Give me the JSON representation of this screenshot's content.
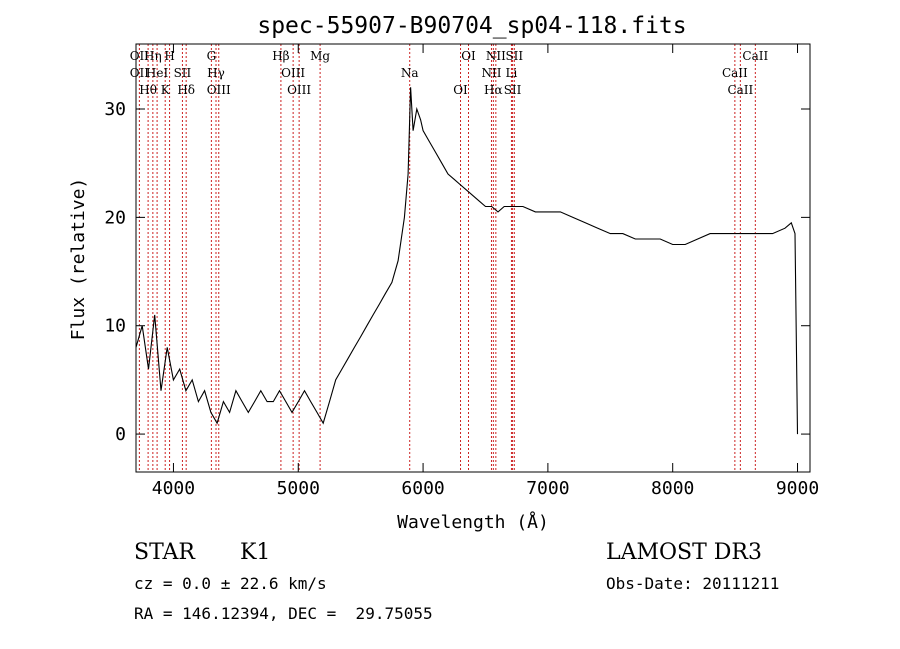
{
  "chart_data": {
    "type": "line",
    "title": "spec-55907-B90704_sp04-118.fits",
    "xlabel": "Wavelength (Å)",
    "ylabel": "Flux (relative)",
    "xlim": [
      3700,
      9100
    ],
    "ylim": [
      -3.5,
      36
    ],
    "xticks": [
      4000,
      5000,
      6000,
      7000,
      8000,
      9000
    ],
    "yticks": [
      0,
      10,
      20,
      30
    ],
    "grid": false,
    "legend": "none",
    "series": [
      {
        "color": "#000000",
        "x": [
          3700,
          3750,
          3800,
          3850,
          3900,
          3950,
          4000,
          4050,
          4100,
          4150,
          4200,
          4250,
          4300,
          4350,
          4400,
          4450,
          4500,
          4550,
          4600,
          4650,
          4700,
          4750,
          4800,
          4850,
          4900,
          4950,
          5000,
          5050,
          5100,
          5150,
          5200,
          5250,
          5300,
          5350,
          5400,
          5450,
          5500,
          5550,
          5600,
          5650,
          5700,
          5750,
          5800,
          5850,
          5880,
          5900,
          5920,
          5950,
          5980,
          6000,
          6050,
          6100,
          6150,
          6200,
          6250,
          6300,
          6350,
          6400,
          6450,
          6500,
          6550,
          6600,
          6650,
          6700,
          6750,
          6800,
          6900,
          7000,
          7100,
          7200,
          7300,
          7400,
          7500,
          7600,
          7700,
          7800,
          7900,
          8000,
          8100,
          8200,
          8300,
          8400,
          8500,
          8550,
          8600,
          8700,
          8800,
          8900,
          8950,
          8980,
          9000
        ],
        "y": [
          8,
          10,
          6,
          11,
          4,
          8,
          5,
          6,
          4,
          5,
          3,
          4,
          2,
          1,
          3,
          2,
          4,
          3,
          2,
          3,
          4,
          3,
          3,
          4,
          3,
          2,
          3,
          4,
          3,
          2,
          1,
          3,
          5,
          6,
          7,
          8,
          9,
          10,
          11,
          12,
          13,
          14,
          16,
          20,
          24,
          32,
          28,
          30,
          29,
          28,
          27,
          26,
          25,
          24,
          23.5,
          23,
          22.5,
          22,
          21.5,
          21,
          21,
          20.5,
          21,
          21,
          21,
          21,
          20.5,
          20.5,
          20.5,
          20,
          19.5,
          19,
          18.5,
          18.5,
          18,
          18,
          18,
          17.5,
          17.5,
          18,
          18.5,
          18.5,
          18.5,
          18.5,
          18.5,
          18.5,
          18.5,
          19,
          19.5,
          18.5,
          0
        ]
      }
    ],
    "lines": [
      {
        "wavelength": 3727,
        "color": "#cc2222",
        "labels": [
          "OII",
          "OII"
        ]
      },
      {
        "wavelength": 3797,
        "color": "#cc2222",
        "labels": [
          "Hθ"
        ]
      },
      {
        "wavelength": 3835,
        "color": "#cc2222",
        "labels": [
          "Hη"
        ]
      },
      {
        "wavelength": 3869,
        "color": "#cc2222",
        "labels": [
          "HeI"
        ]
      },
      {
        "wavelength": 3934,
        "color": "#cc2222",
        "labels": [
          "K"
        ]
      },
      {
        "wavelength": 3969,
        "color": "#cc2222",
        "labels": [
          "H"
        ]
      },
      {
        "wavelength": 4072,
        "color": "#cc2222",
        "labels": [
          "SII"
        ]
      },
      {
        "wavelength": 4102,
        "color": "#cc2222",
        "labels": [
          "Hδ"
        ]
      },
      {
        "wavelength": 4304,
        "color": "#cc2222",
        "labels": [
          "G"
        ]
      },
      {
        "wavelength": 4341,
        "color": "#cc2222",
        "labels": [
          "Hγ"
        ]
      },
      {
        "wavelength": 4363,
        "color": "#cc2222",
        "labels": [
          "OIII"
        ]
      },
      {
        "wavelength": 4861,
        "color": "#cc2222",
        "labels": [
          "Hβ"
        ]
      },
      {
        "wavelength": 4959,
        "color": "#cc2222",
        "labels": [
          "OIII"
        ]
      },
      {
        "wavelength": 5007,
        "color": "#cc2222",
        "labels": [
          "OIII"
        ]
      },
      {
        "wavelength": 5175,
        "color": "#cc2222",
        "labels": [
          "Mg"
        ]
      },
      {
        "wavelength": 5893,
        "color": "#cc2222",
        "labels": [
          "Na"
        ]
      },
      {
        "wavelength": 6300,
        "color": "#cc2222",
        "labels": [
          "OI"
        ]
      },
      {
        "wavelength": 6364,
        "color": "#cc2222",
        "labels": [
          "OI"
        ]
      },
      {
        "wavelength": 6548,
        "color": "#cc2222",
        "labels": [
          "NII"
        ]
      },
      {
        "wavelength": 6563,
        "color": "#cc2222",
        "labels": [
          "Hα"
        ]
      },
      {
        "wavelength": 6583,
        "color": "#cc2222",
        "labels": [
          "NII"
        ]
      },
      {
        "wavelength": 6708,
        "color": "#cc2222",
        "labels": [
          "Li"
        ]
      },
      {
        "wavelength": 6717,
        "color": "#cc2222",
        "labels": [
          "SII"
        ]
      },
      {
        "wavelength": 6731,
        "color": "#cc2222",
        "labels": [
          "SII"
        ]
      },
      {
        "wavelength": 8498,
        "color": "#cc2222",
        "labels": [
          "CaII"
        ]
      },
      {
        "wavelength": 8542,
        "color": "#cc2222",
        "labels": [
          "CaII"
        ]
      },
      {
        "wavelength": 8662,
        "color": "#cc2222",
        "labels": [
          "CaII"
        ]
      }
    ]
  },
  "info": {
    "class": "STAR",
    "subclass": "K1",
    "survey": "LAMOST DR3",
    "cz": "cz = 0.0 ± 22.6 km/s",
    "obs_date": "Obs-Date: 20111211",
    "radec": "RA = 146.12394, DEC =  29.75055"
  }
}
